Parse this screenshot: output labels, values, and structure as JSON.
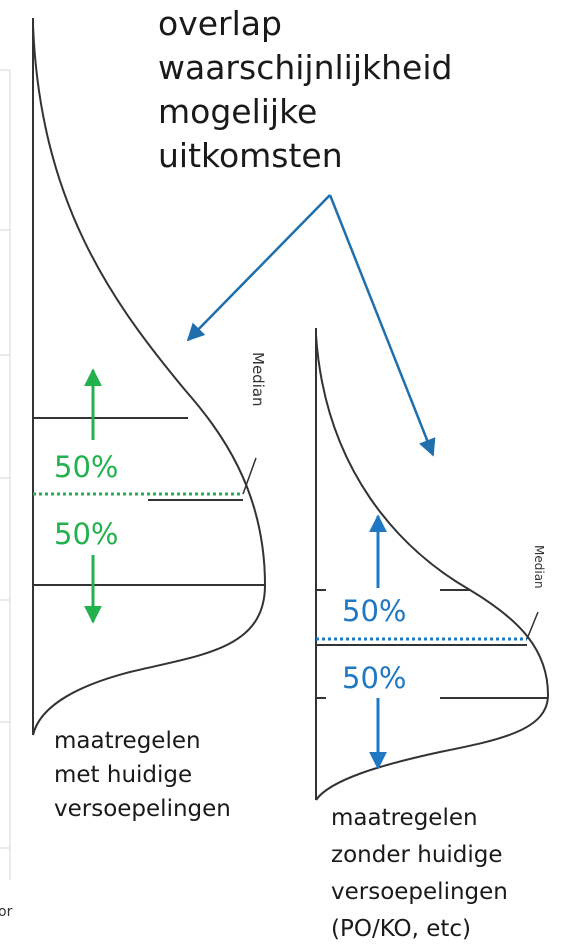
{
  "title": {
    "lines": [
      "overlap",
      "waarschijnlijkheid",
      "mogelijke",
      "uitkomsten"
    ]
  },
  "left_distribution": {
    "upper_percent": "50%",
    "lower_percent": "50%",
    "median_label": "Median",
    "caption_lines": [
      "maatregelen",
      "met huidige",
      "versoepelingen"
    ],
    "color": "#22b14c"
  },
  "right_distribution": {
    "upper_percent": "50%",
    "lower_percent": "50%",
    "median_label": "Median",
    "caption_lines": [
      "maatregelen",
      "zonder huidige",
      "versoepelingen",
      "(PO/KO, etc)"
    ],
    "color": "#1f78c1"
  },
  "edge_fragment": "or",
  "colors": {
    "overlap_arrow": "#1f6fad",
    "curve": "#333333",
    "grid": "#e3e3e3"
  }
}
